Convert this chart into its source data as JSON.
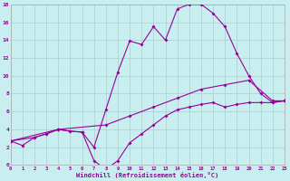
{
  "xlabel": "Windchill (Refroidissement éolien,°C)",
  "bg_color": "#c8eef0",
  "line_color": "#990099",
  "grid_color": "#aacccc",
  "xlim": [
    0,
    23
  ],
  "ylim": [
    0,
    18
  ],
  "xticks": [
    0,
    1,
    2,
    3,
    4,
    5,
    6,
    7,
    8,
    9,
    10,
    11,
    12,
    13,
    14,
    15,
    16,
    17,
    18,
    19,
    20,
    21,
    22,
    23
  ],
  "yticks": [
    0,
    2,
    4,
    6,
    8,
    10,
    12,
    14,
    16,
    18
  ],
  "curve1_x": [
    0,
    1,
    2,
    3,
    4,
    5,
    6,
    7,
    8,
    9,
    10,
    11,
    12,
    13,
    14,
    15,
    16,
    17,
    18,
    19,
    20,
    21,
    22,
    23
  ],
  "curve1_y": [
    2.7,
    2.2,
    3.1,
    3.5,
    4.0,
    3.8,
    3.7,
    2.0,
    6.2,
    10.4,
    13.9,
    13.5,
    15.5,
    14.0,
    17.5,
    18.0,
    18.0,
    17.0,
    15.5,
    12.5,
    10.0,
    8.0,
    7.0,
    7.2
  ],
  "curve2_x": [
    0,
    4,
    8,
    10,
    12,
    14,
    16,
    18,
    20,
    22,
    23
  ],
  "curve2_y": [
    2.7,
    4.0,
    4.5,
    5.5,
    6.5,
    7.5,
    8.5,
    9.0,
    9.5,
    7.2,
    7.2
  ],
  "curve3_x": [
    0,
    2,
    3,
    4,
    5,
    6,
    7,
    8,
    9,
    10,
    11,
    12,
    13,
    14,
    15,
    16,
    17,
    18,
    19,
    20,
    21,
    22,
    23
  ],
  "curve3_y": [
    2.7,
    3.1,
    3.5,
    4.0,
    3.8,
    3.7,
    0.5,
    -0.5,
    0.5,
    2.5,
    3.5,
    4.5,
    5.5,
    6.2,
    6.5,
    6.8,
    7.0,
    6.5,
    6.8,
    7.0,
    7.0,
    7.0,
    7.2
  ]
}
